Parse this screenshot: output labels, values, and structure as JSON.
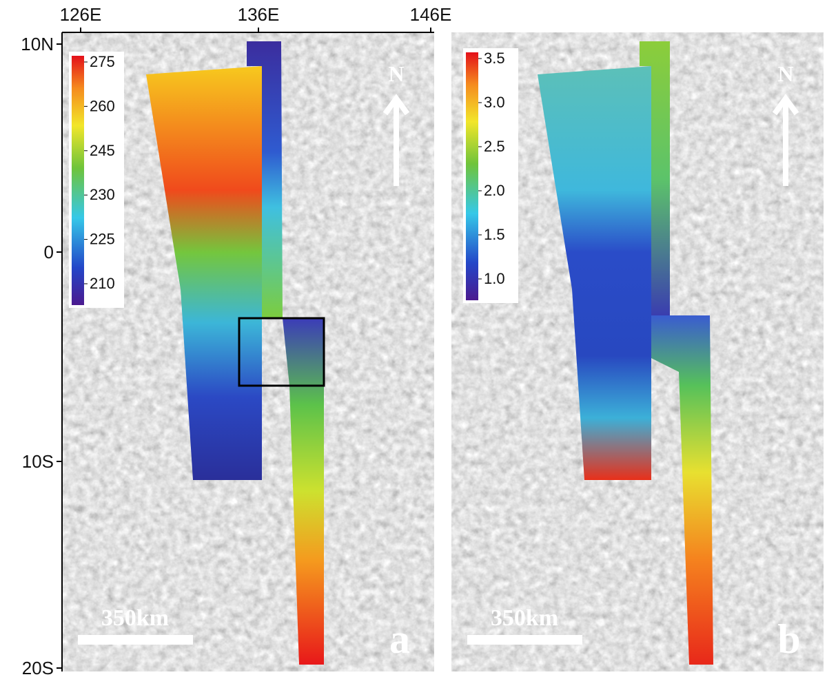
{
  "axes": {
    "x_labels": [
      "126E",
      "136E",
      "146E"
    ],
    "y_labels": [
      "10N",
      "0",
      "10S",
      "20S"
    ]
  },
  "panels": [
    {
      "letter": "a",
      "north": "N",
      "scale_bar": "350km",
      "colorbar": {
        "labels": [
          "275",
          "260",
          "245",
          "230",
          "225",
          "210"
        ]
      }
    },
    {
      "letter": "b",
      "north": "N",
      "scale_bar": "350km",
      "colorbar": {
        "labels": [
          "3.5",
          "3.0",
          "2.5",
          "2.0",
          "1.5",
          "1.0"
        ]
      }
    }
  ]
}
